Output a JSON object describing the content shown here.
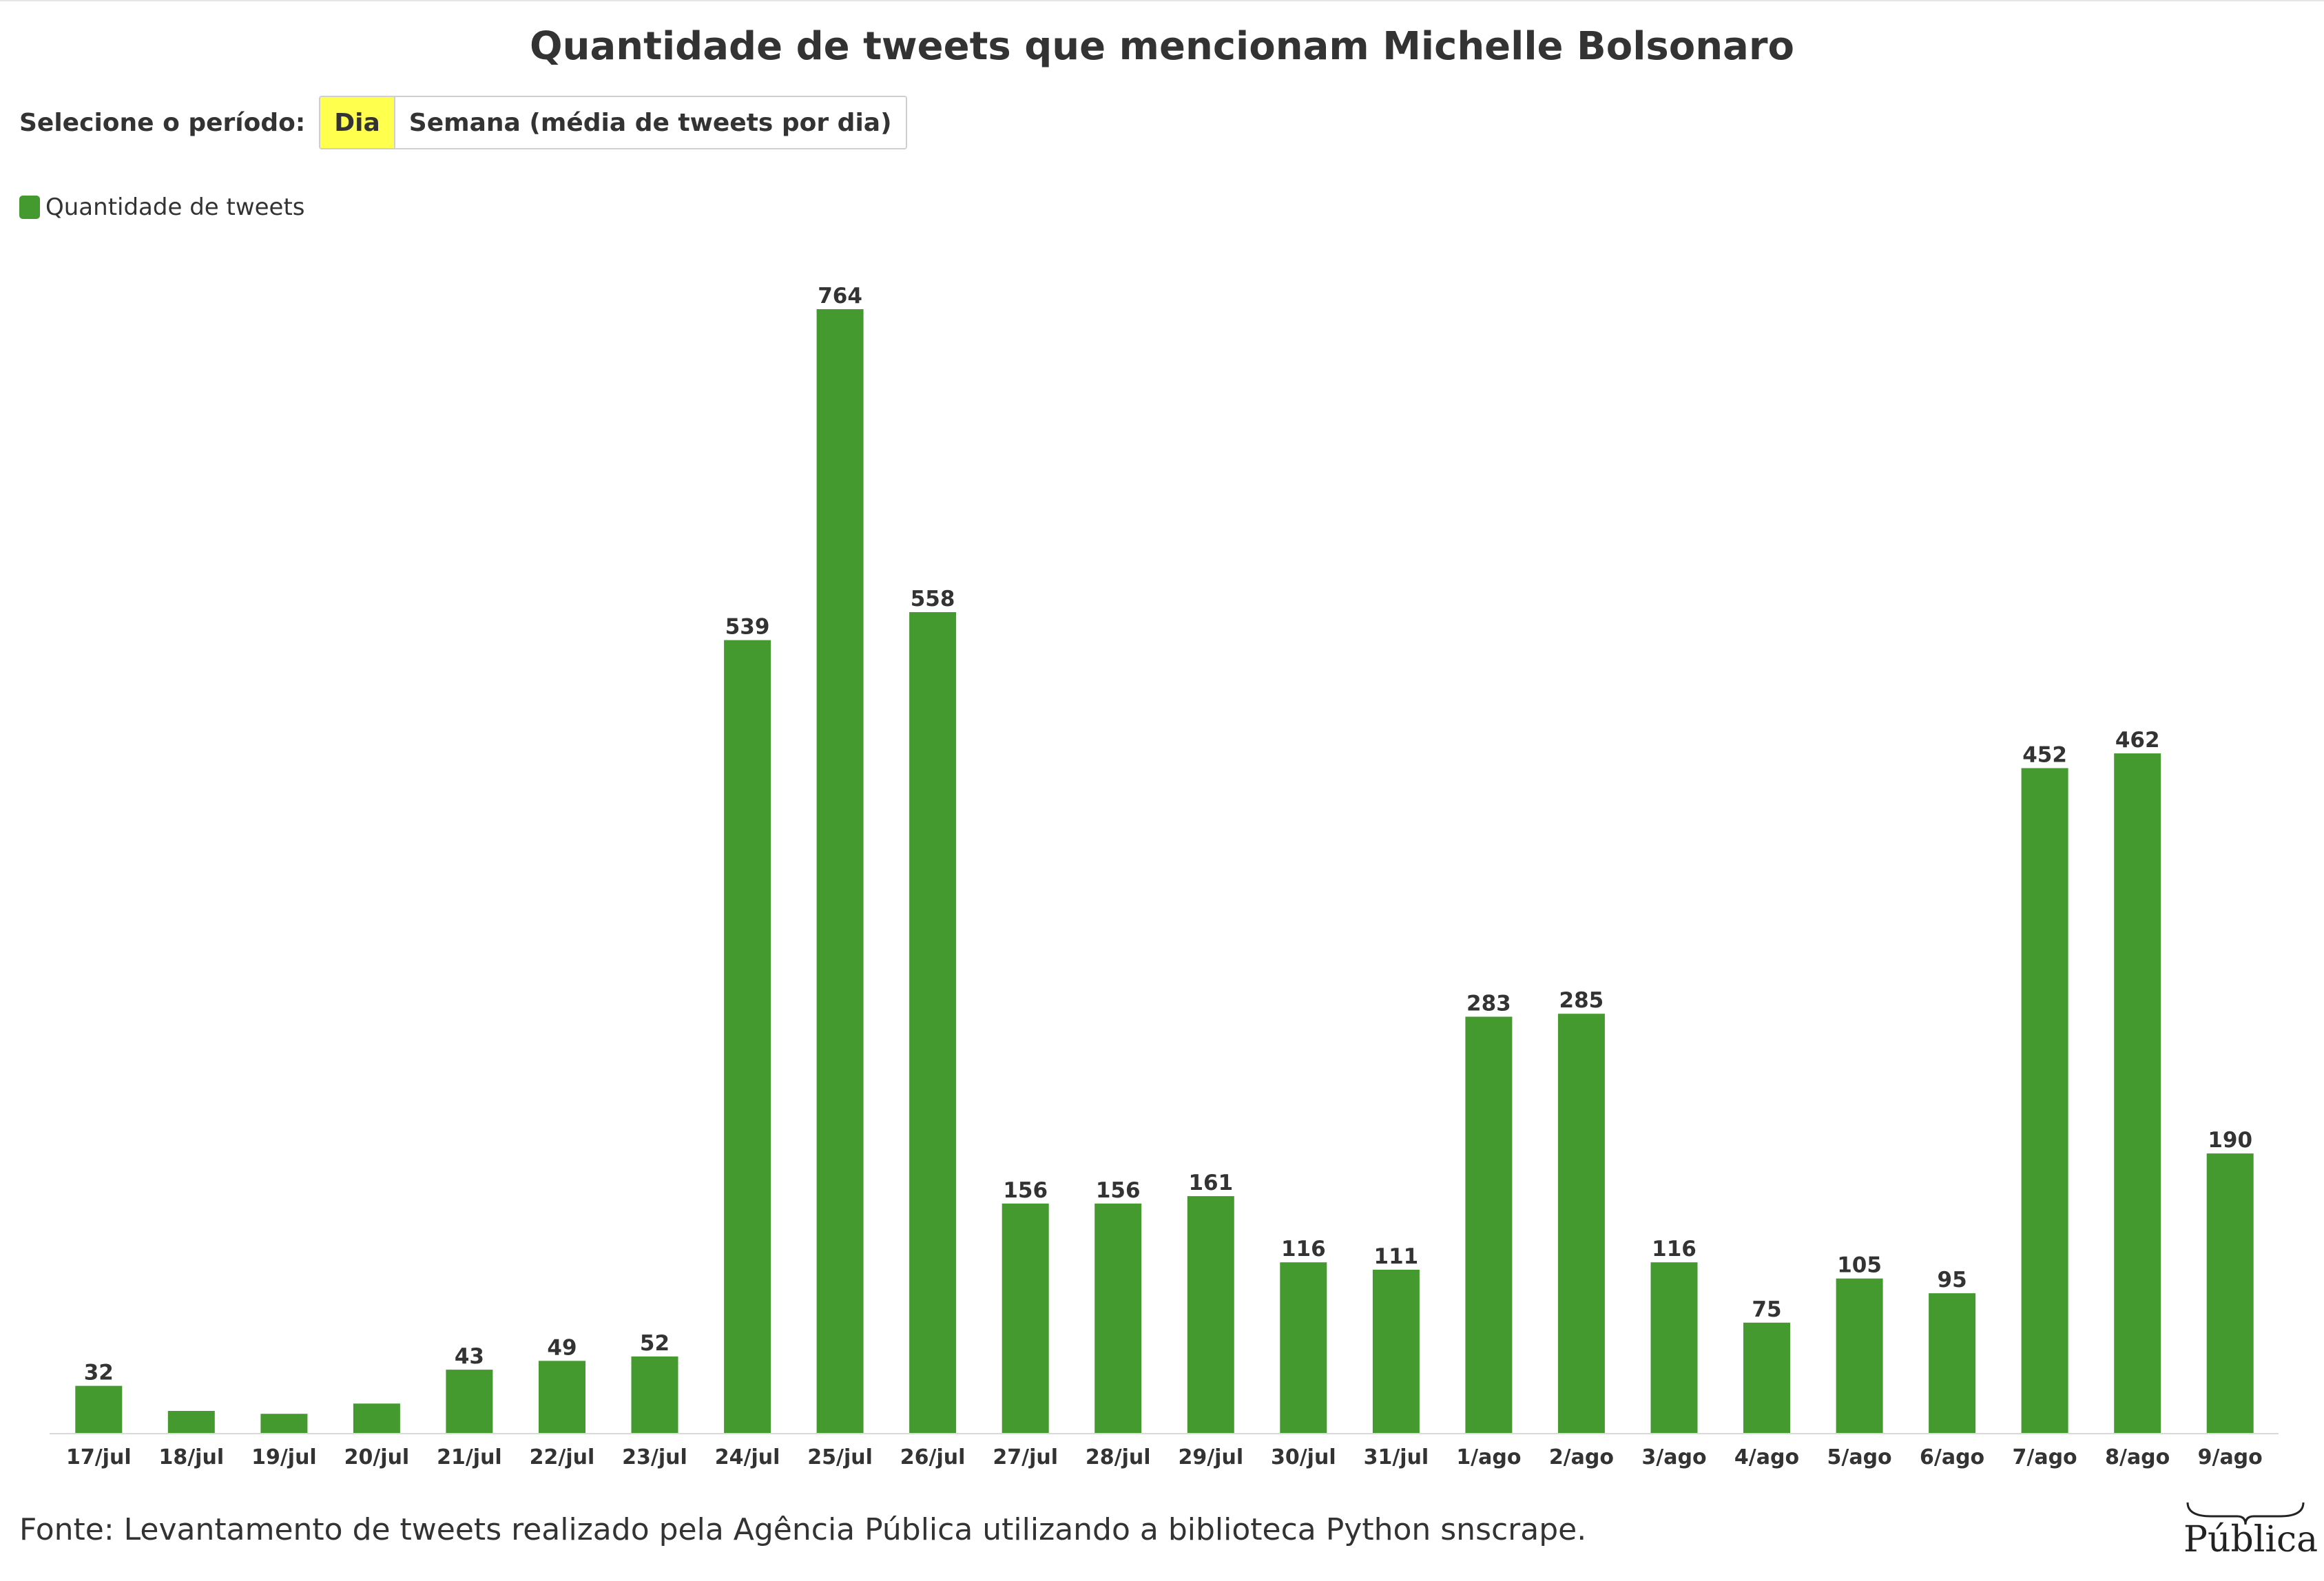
{
  "title": "Quantidade de tweets que mencionam Michelle Bolsonaro",
  "controls": {
    "label": "Selecione o período:",
    "options": [
      "Dia",
      "Semana (média de tweets por dia)"
    ],
    "selected": "Dia"
  },
  "legend": {
    "label": "Quantidade de tweets",
    "color": "#459a2f"
  },
  "source": "Fonte: Levantamento de tweets realizado pela Agência Pública utilizando a biblioteca Python snscrape.",
  "logo": {
    "text": "Pública"
  },
  "colors": {
    "bar": "#459a2f",
    "axis": "#d9d9d9",
    "highlight": "#ffff4d"
  },
  "chart_data": {
    "type": "bar",
    "categories": [
      "17/jul",
      "18/jul",
      "19/jul",
      "20/jul",
      "21/jul",
      "22/jul",
      "23/jul",
      "24/jul",
      "25/jul",
      "26/jul",
      "27/jul",
      "28/jul",
      "29/jul",
      "30/jul",
      "31/jul",
      "1/ago",
      "2/ago",
      "3/ago",
      "4/ago",
      "5/ago",
      "6/ago",
      "7/ago",
      "8/ago",
      "9/ago"
    ],
    "series": [
      {
        "name": "Quantidade de tweets",
        "values": [
          32,
          15,
          13,
          20,
          43,
          49,
          52,
          539,
          764,
          558,
          156,
          156,
          161,
          116,
          111,
          283,
          285,
          116,
          75,
          105,
          95,
          452,
          462,
          190
        ],
        "labels": [
          "32",
          "",
          "",
          "",
          "43",
          "49",
          "52",
          "539",
          "764",
          "558",
          "156",
          "156",
          "161",
          "116",
          "111",
          "283",
          "285",
          "116",
          "75",
          "105",
          "95",
          "452",
          "462",
          "190"
        ]
      }
    ],
    "ylim": [
      0,
      764
    ],
    "grid": false,
    "legend_position": "top-left"
  }
}
